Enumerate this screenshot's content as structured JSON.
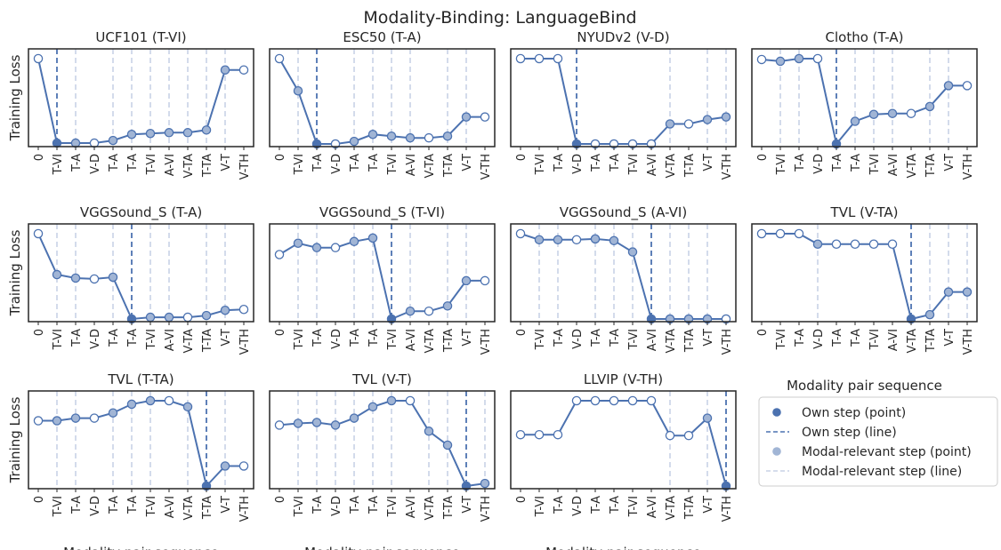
{
  "figure": {
    "title": "Modality-Binding: LanguageBind",
    "x_axis_label": "Modality pair sequence",
    "y_axis_label": "Training Loss"
  },
  "colors": {
    "line": "#4c72b0",
    "own_point": "#4c72b0",
    "relevant_point": "#a1b5d5",
    "hollow_point": "#ffffff",
    "relevant_line": "#c8d2e6",
    "axes": "#262626"
  },
  "legend": {
    "items": [
      {
        "label": "Own step (point)",
        "kind": "own-point"
      },
      {
        "label": "Own step (line)",
        "kind": "own-line"
      },
      {
        "label": "Modal-relevant step (point)",
        "kind": "relevant-point"
      },
      {
        "label": "Modal-relevant step (line)",
        "kind": "relevant-line"
      }
    ]
  },
  "chart_data": [
    {
      "type": "line",
      "title": "UCF101 (T-VI)",
      "categories": [
        "0",
        "T-VI",
        "T-A",
        "V-D",
        "T-A",
        "T-A",
        "T-VI",
        "A-VI",
        "V-TA",
        "T-TA",
        "V-T",
        "V-TH"
      ],
      "values": [
        0.99,
        0.02,
        0.02,
        0.02,
        0.05,
        0.12,
        0.13,
        0.14,
        0.14,
        0.17,
        0.86,
        0.86
      ],
      "markers": [
        "hollow",
        "own",
        "relevant",
        "hollow",
        "relevant",
        "relevant",
        "relevant",
        "relevant",
        "relevant",
        "relevant",
        "relevant",
        "hollow"
      ],
      "own_index": 1,
      "relevant_indices": [
        2,
        4,
        5,
        6,
        7,
        8,
        9,
        10
      ],
      "ylim": [
        0,
        1
      ],
      "grid": false
    },
    {
      "type": "line",
      "title": "ESC50 (T-A)",
      "categories": [
        "0",
        "T-VI",
        "T-A",
        "V-D",
        "T-A",
        "T-A",
        "T-VI",
        "A-VI",
        "V-TA",
        "T-TA",
        "V-T",
        "V-TH"
      ],
      "values": [
        0.99,
        0.62,
        0.01,
        0.01,
        0.04,
        0.12,
        0.1,
        0.08,
        0.08,
        0.1,
        0.32,
        0.32
      ],
      "markers": [
        "hollow",
        "relevant",
        "own",
        "hollow",
        "relevant",
        "relevant",
        "relevant",
        "relevant",
        "hollow",
        "relevant",
        "relevant",
        "hollow"
      ],
      "own_index": 2,
      "relevant_indices": [
        1,
        4,
        5,
        6,
        7,
        9,
        10
      ],
      "ylim": [
        0,
        1
      ],
      "grid": false
    },
    {
      "type": "line",
      "title": "NYUDv2 (V-D)",
      "categories": [
        "0",
        "T-VI",
        "T-A",
        "V-D",
        "T-A",
        "T-A",
        "T-VI",
        "A-VI",
        "V-TA",
        "T-TA",
        "V-T",
        "V-TH"
      ],
      "values": [
        0.99,
        0.99,
        0.99,
        0.01,
        0.01,
        0.01,
        0.01,
        0.01,
        0.24,
        0.24,
        0.29,
        0.32
      ],
      "markers": [
        "hollow",
        "hollow",
        "hollow",
        "own",
        "hollow",
        "hollow",
        "hollow",
        "hollow",
        "relevant",
        "hollow",
        "relevant",
        "relevant"
      ],
      "own_index": 3,
      "relevant_indices": [
        8,
        10,
        11
      ],
      "ylim": [
        0,
        1
      ],
      "grid": false
    },
    {
      "type": "line",
      "title": "Clotho (T-A)",
      "categories": [
        "0",
        "T-VI",
        "T-A",
        "V-D",
        "T-A",
        "T-A",
        "T-VI",
        "A-VI",
        "V-TA",
        "T-TA",
        "V-T",
        "V-TH"
      ],
      "values": [
        0.98,
        0.96,
        0.99,
        0.99,
        0.01,
        0.27,
        0.35,
        0.36,
        0.36,
        0.44,
        0.68,
        0.68
      ],
      "markers": [
        "hollow",
        "relevant",
        "relevant",
        "hollow",
        "own",
        "relevant",
        "relevant",
        "relevant",
        "hollow",
        "relevant",
        "relevant",
        "hollow"
      ],
      "own_index": 4,
      "relevant_indices": [
        1,
        2,
        5,
        6,
        7,
        9,
        10
      ],
      "ylim": [
        0,
        1
      ],
      "grid": false
    },
    {
      "type": "line",
      "title": "VGGSound_S (T-A)",
      "categories": [
        "0",
        "T-VI",
        "T-A",
        "V-D",
        "T-A",
        "T-A",
        "T-VI",
        "A-VI",
        "V-TA",
        "T-TA",
        "V-T",
        "V-TH"
      ],
      "values": [
        0.99,
        0.52,
        0.48,
        0.47,
        0.49,
        0.01,
        0.03,
        0.03,
        0.03,
        0.05,
        0.11,
        0.12
      ],
      "markers": [
        "hollow",
        "relevant",
        "relevant",
        "hollow",
        "relevant",
        "own",
        "relevant",
        "relevant",
        "hollow",
        "relevant",
        "relevant",
        "hollow"
      ],
      "own_index": 5,
      "relevant_indices": [
        1,
        2,
        4,
        6,
        7,
        9,
        10
      ],
      "ylim": [
        0,
        1
      ],
      "grid": false
    },
    {
      "type": "line",
      "title": "VGGSound_S (T-VI)",
      "categories": [
        "0",
        "T-VI",
        "T-A",
        "V-D",
        "T-A",
        "T-A",
        "T-VI",
        "A-VI",
        "V-TA",
        "T-TA",
        "V-T",
        "V-TH"
      ],
      "values": [
        0.75,
        0.88,
        0.83,
        0.83,
        0.9,
        0.94,
        0.01,
        0.1,
        0.1,
        0.16,
        0.45,
        0.45
      ],
      "markers": [
        "hollow",
        "relevant",
        "relevant",
        "hollow",
        "relevant",
        "relevant",
        "own",
        "relevant",
        "hollow",
        "relevant",
        "relevant",
        "hollow"
      ],
      "own_index": 6,
      "relevant_indices": [
        1,
        2,
        4,
        5,
        7,
        9,
        10
      ],
      "ylim": [
        0,
        1
      ],
      "grid": false
    },
    {
      "type": "line",
      "title": "VGGSound_S (A-VI)",
      "categories": [
        "0",
        "T-VI",
        "T-A",
        "V-D",
        "T-A",
        "T-A",
        "T-VI",
        "A-VI",
        "V-TA",
        "T-TA",
        "V-T",
        "V-TH"
      ],
      "values": [
        0.99,
        0.92,
        0.92,
        0.92,
        0.93,
        0.91,
        0.78,
        0.01,
        0.01,
        0.01,
        0.01,
        0.01
      ],
      "markers": [
        "hollow",
        "relevant",
        "relevant",
        "hollow",
        "relevant",
        "relevant",
        "relevant",
        "own",
        "relevant",
        "relevant",
        "relevant",
        "hollow"
      ],
      "own_index": 7,
      "relevant_indices": [
        1,
        2,
        4,
        5,
        6,
        8,
        9,
        10
      ],
      "ylim": [
        0,
        1
      ],
      "grid": false
    },
    {
      "type": "line",
      "title": "TVL (V-TA)",
      "categories": [
        "0",
        "T-VI",
        "T-A",
        "V-D",
        "T-A",
        "T-A",
        "T-VI",
        "A-VI",
        "V-TA",
        "T-TA",
        "V-T",
        "V-TH"
      ],
      "values": [
        0.99,
        0.99,
        0.99,
        0.87,
        0.87,
        0.87,
        0.87,
        0.87,
        0.01,
        0.06,
        0.32,
        0.32
      ],
      "markers": [
        "hollow",
        "hollow",
        "hollow",
        "relevant",
        "hollow",
        "hollow",
        "hollow",
        "hollow",
        "own",
        "relevant",
        "relevant",
        "relevant"
      ],
      "own_index": 8,
      "relevant_indices": [
        3,
        9,
        10,
        11
      ],
      "ylim": [
        0,
        1
      ],
      "grid": false
    },
    {
      "type": "line",
      "title": "TVL (T-TA)",
      "categories": [
        "0",
        "T-VI",
        "T-A",
        "V-D",
        "T-A",
        "T-A",
        "T-VI",
        "A-VI",
        "V-TA",
        "T-TA",
        "V-T",
        "V-TH"
      ],
      "values": [
        0.76,
        0.76,
        0.79,
        0.79,
        0.85,
        0.95,
        0.99,
        0.99,
        0.92,
        0.01,
        0.24,
        0.24
      ],
      "markers": [
        "hollow",
        "relevant",
        "relevant",
        "hollow",
        "relevant",
        "relevant",
        "relevant",
        "hollow",
        "relevant",
        "own",
        "relevant",
        "hollow"
      ],
      "own_index": 9,
      "relevant_indices": [
        1,
        2,
        4,
        5,
        6,
        8,
        10
      ],
      "ylim": [
        0,
        1
      ],
      "grid": false
    },
    {
      "type": "line",
      "title": "TVL (V-T)",
      "categories": [
        "0",
        "T-VI",
        "T-A",
        "V-D",
        "T-A",
        "T-A",
        "T-VI",
        "A-VI",
        "V-TA",
        "T-TA",
        "V-T",
        "V-TH"
      ],
      "values": [
        0.71,
        0.73,
        0.74,
        0.71,
        0.79,
        0.92,
        0.99,
        0.99,
        0.64,
        0.48,
        0.01,
        0.04
      ],
      "markers": [
        "hollow",
        "relevant",
        "relevant",
        "relevant",
        "relevant",
        "relevant",
        "relevant",
        "hollow",
        "relevant",
        "relevant",
        "own",
        "relevant"
      ],
      "own_index": 10,
      "relevant_indices": [
        1,
        2,
        3,
        4,
        5,
        6,
        8,
        9,
        11
      ],
      "ylim": [
        0,
        1
      ],
      "grid": false
    },
    {
      "type": "line",
      "title": "LLVIP (V-TH)",
      "categories": [
        "0",
        "T-VI",
        "T-A",
        "V-D",
        "T-A",
        "T-A",
        "T-VI",
        "A-VI",
        "V-TA",
        "T-TA",
        "V-T",
        "V-TH"
      ],
      "values": [
        0.6,
        0.6,
        0.6,
        0.99,
        0.99,
        0.99,
        0.99,
        0.99,
        0.59,
        0.59,
        0.79,
        0.01
      ],
      "markers": [
        "hollow",
        "hollow",
        "hollow",
        "hollow",
        "hollow",
        "hollow",
        "hollow",
        "hollow",
        "hollow",
        "hollow",
        "relevant",
        "own"
      ],
      "own_index": 11,
      "relevant_indices": [
        8,
        10
      ],
      "ylim": [
        0,
        1
      ],
      "grid": false
    }
  ]
}
